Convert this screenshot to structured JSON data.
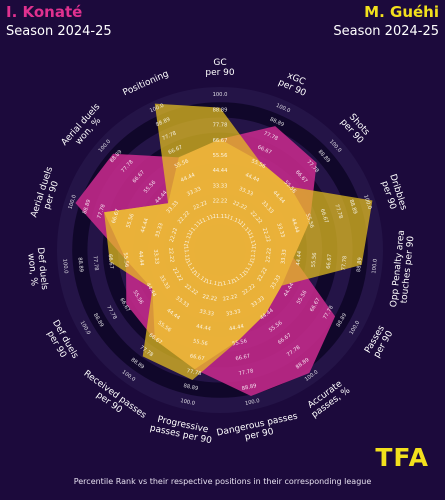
{
  "header": {
    "left_player": "I. Konaté",
    "left_season": "Season 2024-25",
    "right_player": "M. Guéhi",
    "right_season": "Season 2024-25"
  },
  "footer": "Percentile Rank vs their respective positions in their corresponding league",
  "logo": "TFA",
  "colors": {
    "background": "#1c0a3c",
    "ring_dark": "#10072a",
    "ring_light": "#241447",
    "player1": "#c2298a",
    "player2": "#e8c21e",
    "overlap": "#ecb63a"
  },
  "chart_data": {
    "type": "radar",
    "ring_labels": [
      "11.11",
      "22.22",
      "33.33",
      "44.44",
      "55.56",
      "66.67",
      "77.78",
      "88.89",
      "100.0"
    ],
    "range": [
      0,
      100
    ],
    "axes": [
      "GC\nper 90",
      "xGC\nper 90",
      "Shots\nper 90",
      "Dribbles\nper 90",
      "Opp Penalty area\ntouches per 90",
      "Passes\nper 90",
      "Accurate\npasses, %",
      "Dangerous passes\nper 90",
      "Progressive\npasses per 90",
      "Received passes\nper 90",
      "Def duels\nper 90",
      "Def duels\nwon, %",
      "Aerial duels\nper 90",
      "Aerial duels\nwon, %",
      "Positioning"
    ],
    "series": [
      {
        "name": "I. Konaté",
        "values": [
          62,
          80,
          76,
          50,
          35,
          78,
          92,
          90,
          70,
          62,
          60,
          50,
          92,
          86,
          55
        ]
      },
      {
        "name": "M. Guéhi",
        "values": [
          85,
          52,
          50,
          98,
          85,
          33,
          38,
          48,
          78,
          77,
          38,
          62,
          70,
          32,
          98
        ]
      }
    ]
  }
}
